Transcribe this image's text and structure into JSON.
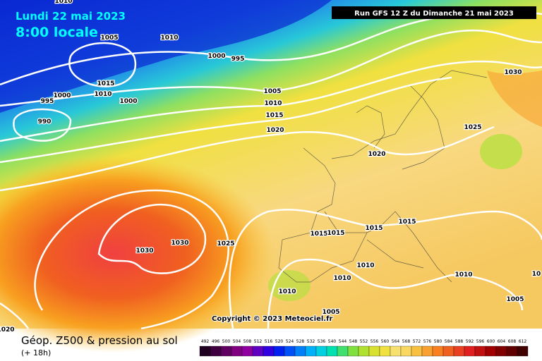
{
  "header": {
    "date": "Lundi 22 mai 2023",
    "time": "8:00 locale",
    "run": "Run GFS 12 Z du Dimanche 21 mai 2023"
  },
  "copyright": "Copyright © 2023 Meteociel.fr",
  "footer": {
    "title": "Géop. Z500 & pression au sol",
    "lead": "(+ 18h)"
  },
  "colorbar": {
    "labels": [
      492,
      496,
      500,
      504,
      508,
      512,
      516,
      520,
      524,
      528,
      532,
      536,
      540,
      544,
      548,
      552,
      556,
      560,
      564,
      568,
      572,
      576,
      580,
      584,
      588,
      592,
      596,
      600,
      604,
      608,
      612
    ]
  },
  "isobar_labels": [
    "1010",
    "1005",
    "1010",
    "1000",
    "995",
    "1015",
    "1010",
    "1000",
    "995",
    "1000",
    "990",
    "1005",
    "1010",
    "1015",
    "1020",
    "1030",
    "1025",
    "1020",
    "1030",
    "1030",
    "1025",
    "1015",
    "1015",
    "1015",
    "1015",
    "1010",
    "1010",
    "1010",
    "1010",
    "1005",
    "1005",
    "1020",
    "10"
  ]
}
